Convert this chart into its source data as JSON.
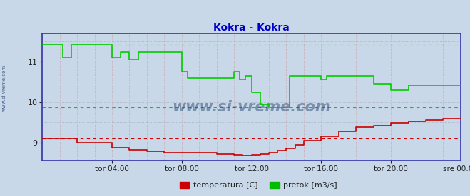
{
  "title": "Kokra - Kokra",
  "title_color": "#0000cc",
  "bg_color": "#c8d8e8",
  "plot_bg_color": "#c8d8e8",
  "xlabel": "",
  "ylabel": "",
  "xlim": [
    0,
    288
  ],
  "ylim": [
    8.55,
    11.7
  ],
  "yticks": [
    9,
    10,
    11
  ],
  "xtick_labels": [
    "tor 04:00",
    "tor 08:00",
    "tor 12:00",
    "tor 16:00",
    "tor 20:00",
    "sre 00:00"
  ],
  "xtick_positions": [
    48,
    96,
    144,
    192,
    240,
    288
  ],
  "legend_labels": [
    "temperatura [C]",
    "pretok [m3/s]"
  ],
  "legend_colors": [
    "#cc0000",
    "#00bb00"
  ],
  "watermark": "www.si-vreme.com",
  "watermark_color": "#1a3a6a",
  "left_label": "www.si-vreme.com",
  "green_dashed_max": 11.42,
  "green_dashed_min": 9.88,
  "red_dashed": 9.1,
  "green_data_x": [
    0,
    14,
    14,
    20,
    20,
    48,
    48,
    54,
    54,
    60,
    60,
    66,
    66,
    96,
    96,
    100,
    100,
    132,
    132,
    136,
    136,
    140,
    140,
    144,
    144,
    150,
    150,
    156,
    156,
    170,
    170,
    192,
    192,
    196,
    196,
    228,
    228,
    240,
    240,
    252,
    252,
    288
  ],
  "green_data_y": [
    11.42,
    11.42,
    11.1,
    11.1,
    11.42,
    11.42,
    11.1,
    11.1,
    11.25,
    11.25,
    11.05,
    11.05,
    11.25,
    11.25,
    10.75,
    10.75,
    10.6,
    10.6,
    10.75,
    10.75,
    10.55,
    10.55,
    10.65,
    10.65,
    10.25,
    10.25,
    9.95,
    9.95,
    9.88,
    9.88,
    10.65,
    10.65,
    10.55,
    10.55,
    10.65,
    10.65,
    10.45,
    10.45,
    10.3,
    10.3,
    10.42,
    10.42
  ],
  "red_data_x": [
    0,
    24,
    24,
    48,
    48,
    60,
    60,
    72,
    72,
    84,
    84,
    96,
    96,
    108,
    108,
    120,
    120,
    132,
    132,
    138,
    138,
    144,
    144,
    150,
    150,
    156,
    156,
    162,
    162,
    168,
    168,
    174,
    174,
    180,
    180,
    192,
    192,
    204,
    204,
    216,
    216,
    228,
    228,
    240,
    240,
    252,
    252,
    264,
    264,
    276,
    276,
    288
  ],
  "red_data_y": [
    9.1,
    9.1,
    9.0,
    9.0,
    8.88,
    8.88,
    8.82,
    8.82,
    8.78,
    8.78,
    8.75,
    8.75,
    8.75,
    8.75,
    8.74,
    8.74,
    8.72,
    8.72,
    8.7,
    8.7,
    8.68,
    8.68,
    8.7,
    8.7,
    8.72,
    8.72,
    8.75,
    8.75,
    8.8,
    8.8,
    8.85,
    8.85,
    8.95,
    8.95,
    9.05,
    9.05,
    9.15,
    9.15,
    9.28,
    9.28,
    9.38,
    9.38,
    9.42,
    9.42,
    9.48,
    9.48,
    9.52,
    9.52,
    9.55,
    9.55,
    9.6,
    9.6
  ]
}
